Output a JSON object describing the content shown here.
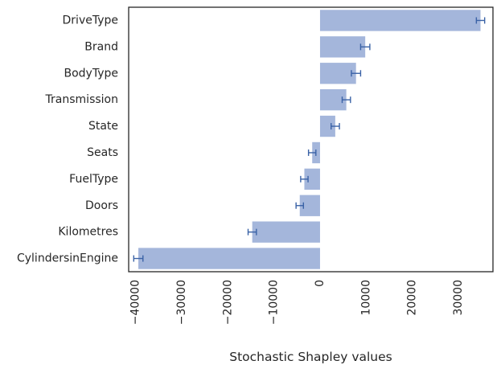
{
  "chart_data": {
    "type": "bar",
    "orientation": "horizontal",
    "xlabel": "Stochastic Shapley values",
    "ylabel": "",
    "title": "",
    "xlim": [
      -41500,
      37500
    ],
    "xticks": [
      -40000,
      -30000,
      -20000,
      -10000,
      0,
      10000,
      20000,
      30000
    ],
    "xtick_labels": [
      "−40000",
      "−30000",
      "−20000",
      "−10000",
      "0",
      "10000",
      "20000",
      "30000"
    ],
    "grid": false,
    "bar_color": "#a4b6db",
    "error_color": "#3a62a6",
    "categories": [
      "DriveType",
      "Brand",
      "BodyType",
      "Transmission",
      "State",
      "Seats",
      "FuelType",
      "Doors",
      "Kilometres",
      "CylindersinEngine"
    ],
    "values": [
      34800,
      9800,
      7800,
      5700,
      3300,
      -1700,
      -3400,
      -4400,
      -14700,
      -39400
    ],
    "errors": [
      900,
      1000,
      1000,
      900,
      900,
      800,
      800,
      800,
      900,
      1000
    ]
  }
}
